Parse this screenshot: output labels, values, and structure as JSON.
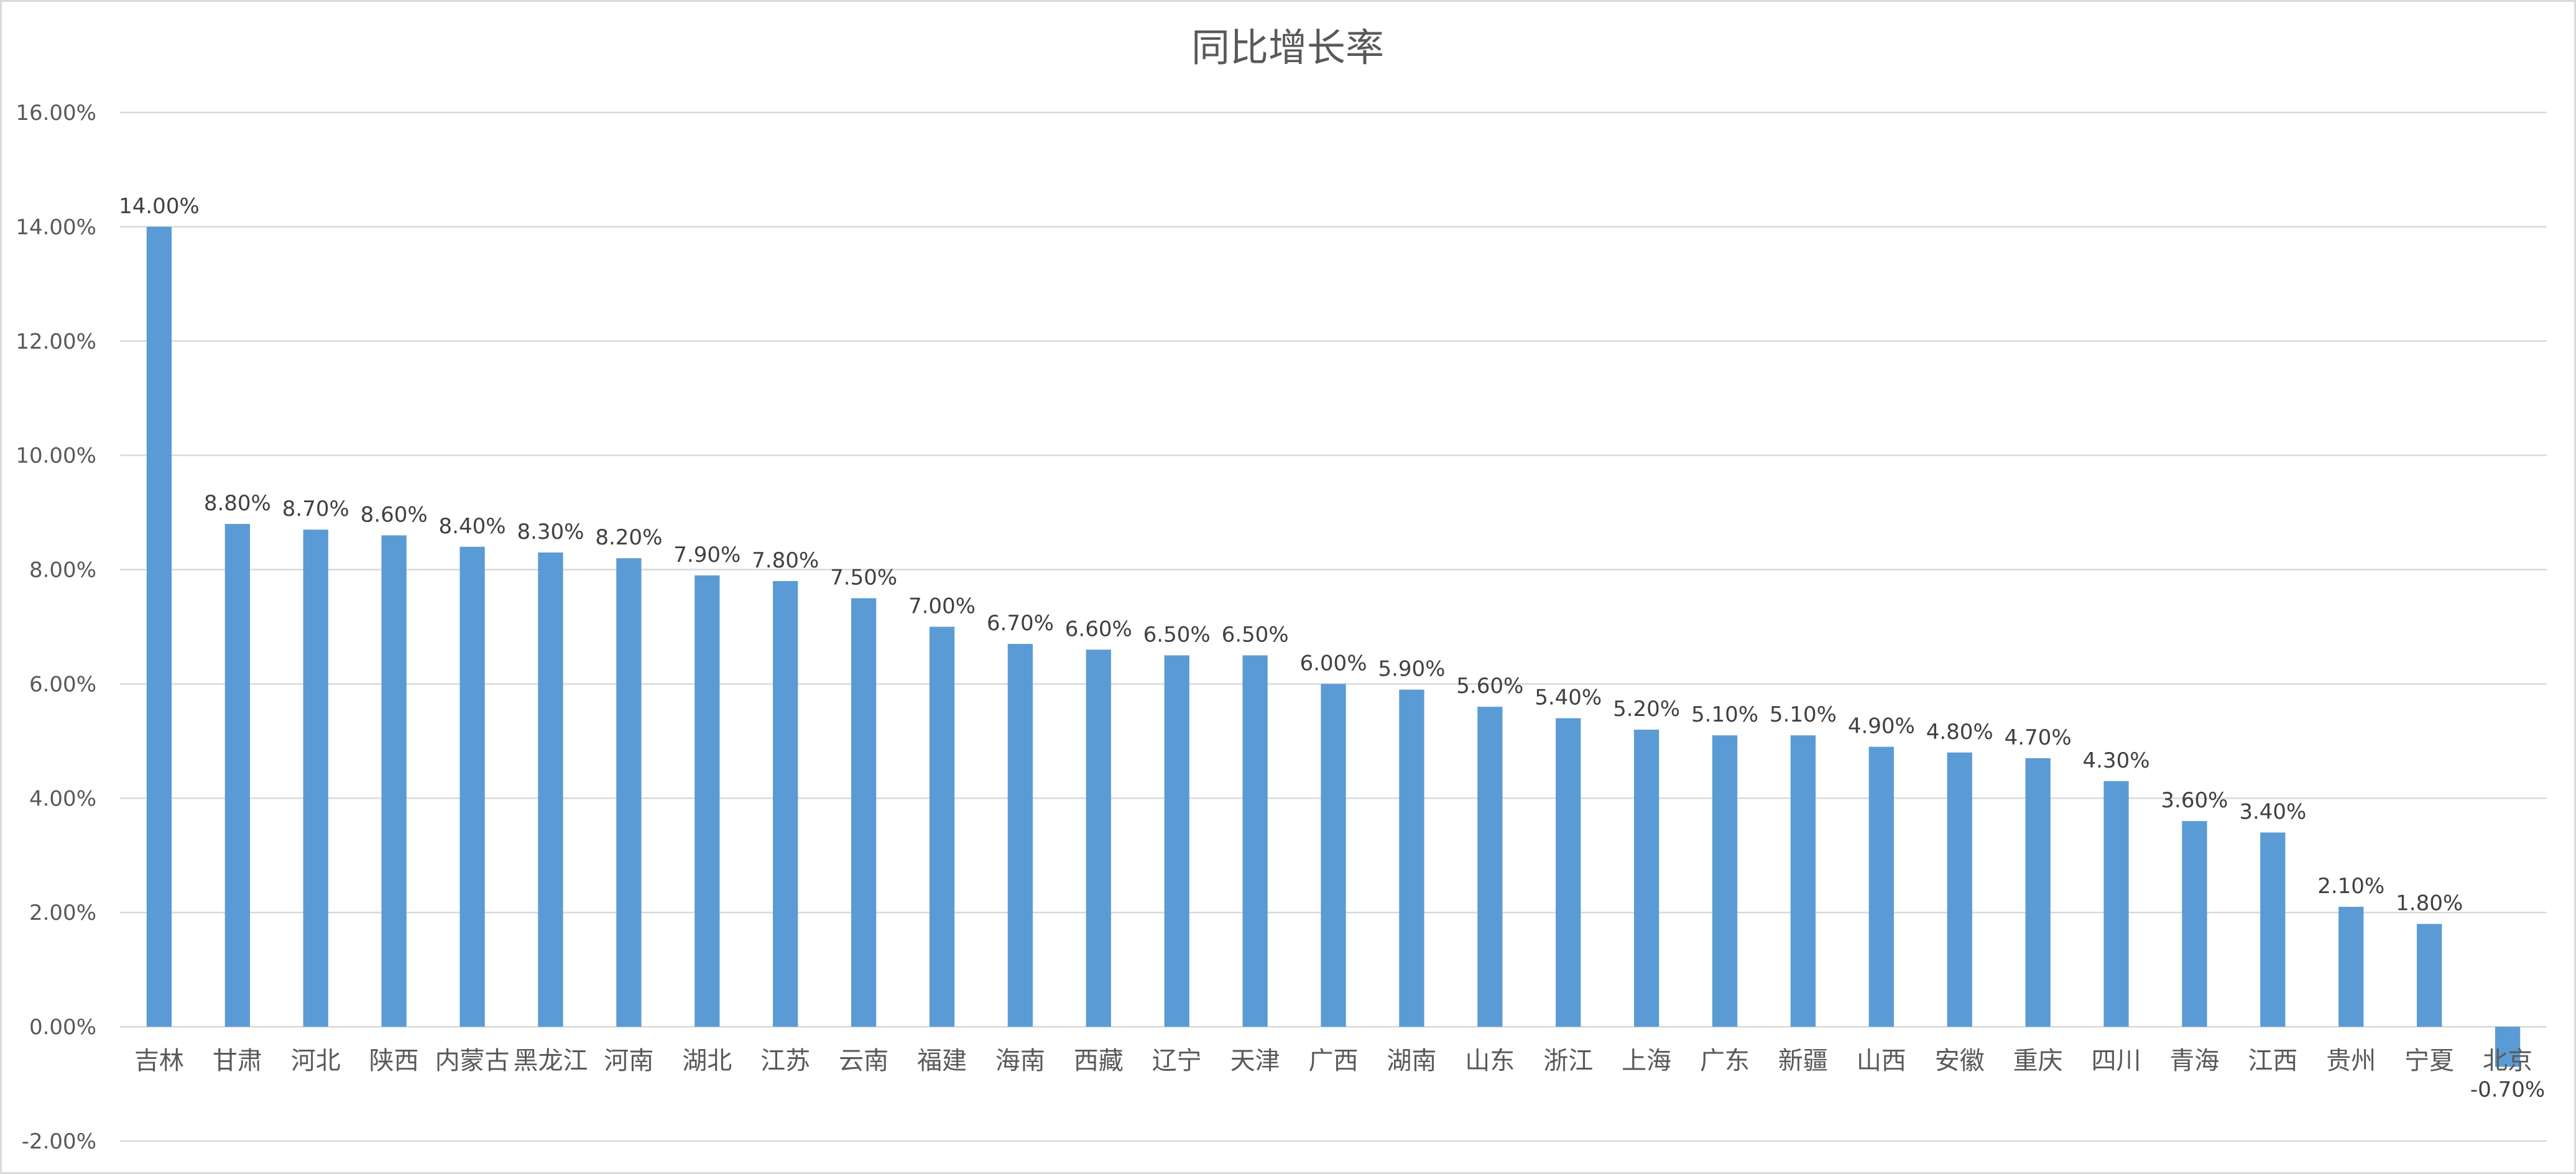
{
  "chart_data": {
    "type": "bar",
    "title": "同比增长率",
    "xlabel": "",
    "ylabel": "",
    "ylim": [
      -0.02,
      0.16
    ],
    "ytick_step": 0.02,
    "yticks": [
      "-2.00%",
      "0.00%",
      "2.00%",
      "4.00%",
      "6.00%",
      "8.00%",
      "10.00%",
      "12.00%",
      "14.00%",
      "16.00%"
    ],
    "grid": true,
    "legend": "none",
    "color": "#5b9bd5",
    "categories": [
      "吉林",
      "甘肃",
      "河北",
      "陕西",
      "内蒙古",
      "黑龙江",
      "河南",
      "湖北",
      "江苏",
      "云南",
      "福建",
      "海南",
      "西藏",
      "辽宁",
      "天津",
      "广西",
      "湖南",
      "山东",
      "浙江",
      "上海",
      "广东",
      "新疆",
      "山西",
      "安徽",
      "重庆",
      "四川",
      "青海",
      "江西",
      "贵州",
      "宁夏",
      "北京"
    ],
    "values": [
      0.14,
      0.088,
      0.087,
      0.086,
      0.084,
      0.083,
      0.082,
      0.079,
      0.078,
      0.075,
      0.07,
      0.067,
      0.066,
      0.065,
      0.065,
      0.06,
      0.059,
      0.056,
      0.054,
      0.052,
      0.051,
      0.051,
      0.049,
      0.048,
      0.047,
      0.043,
      0.036,
      0.034,
      0.021,
      0.018,
      -0.007
    ],
    "data_labels": [
      "14.00%",
      "8.80%",
      "8.70%",
      "8.60%",
      "8.40%",
      "8.30%",
      "8.20%",
      "7.90%",
      "7.80%",
      "7.50%",
      "7.00%",
      "6.70%",
      "6.60%",
      "6.50%",
      "6.50%",
      "6.00%",
      "5.90%",
      "5.60%",
      "5.40%",
      "5.20%",
      "5.10%",
      "5.10%",
      "4.90%",
      "4.80%",
      "4.70%",
      "4.30%",
      "3.60%",
      "3.40%",
      "2.10%",
      "1.80%",
      "-0.70%"
    ]
  }
}
